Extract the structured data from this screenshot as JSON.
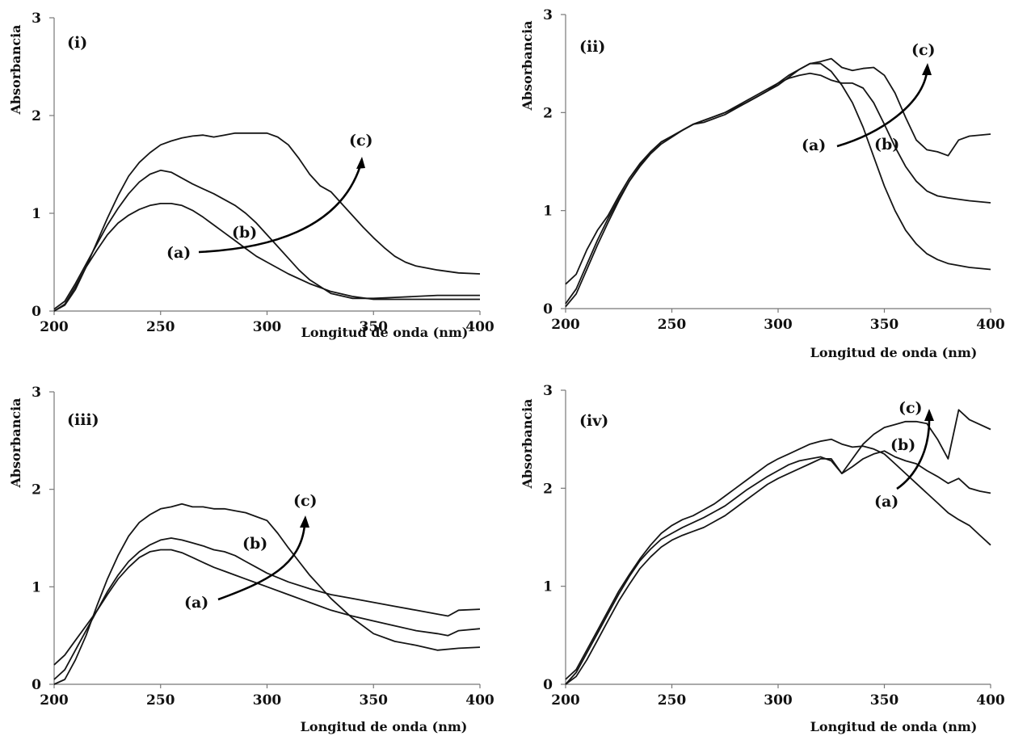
{
  "chart_data": [
    {
      "type": "line",
      "panel_label": "(i)",
      "xlabel": "Longitud de onda (nm)",
      "ylabel": "Absorbancia",
      "xlim": [
        200,
        400
      ],
      "ylim": [
        0,
        3
      ],
      "x_ticks": [
        "200",
        "250",
        "300",
        "350",
        "400"
      ],
      "y_ticks": [
        "0",
        "1",
        "2",
        "3"
      ],
      "grid": false,
      "annotations": {
        "a": "(a)",
        "b": "(b)",
        "c": "(c)"
      },
      "series": [
        {
          "x": [
            200,
            205,
            210,
            215,
            220,
            225,
            230,
            235,
            240,
            245,
            250,
            255,
            260,
            265,
            270,
            275,
            280,
            285,
            290,
            295,
            300,
            310,
            320,
            330,
            340,
            350,
            360,
            370,
            380,
            390,
            400
          ],
          "y": [
            0.0,
            0.07,
            0.25,
            0.45,
            0.62,
            0.78,
            0.9,
            0.98,
            1.04,
            1.08,
            1.1,
            1.1,
            1.08,
            1.03,
            0.96,
            0.88,
            0.8,
            0.72,
            0.64,
            0.56,
            0.5,
            0.38,
            0.28,
            0.2,
            0.15,
            0.12,
            0.12,
            0.12,
            0.12,
            0.12,
            0.12
          ]
        },
        {
          "x": [
            200,
            205,
            210,
            215,
            220,
            225,
            230,
            235,
            240,
            245,
            250,
            255,
            260,
            265,
            270,
            275,
            280,
            285,
            290,
            295,
            300,
            305,
            310,
            315,
            320,
            330,
            340,
            350,
            360,
            370,
            380,
            390,
            400
          ],
          "y": [
            0.02,
            0.1,
            0.28,
            0.48,
            0.68,
            0.88,
            1.05,
            1.2,
            1.32,
            1.4,
            1.44,
            1.42,
            1.36,
            1.3,
            1.25,
            1.2,
            1.14,
            1.08,
            1.0,
            0.9,
            0.78,
            0.66,
            0.54,
            0.42,
            0.32,
            0.18,
            0.13,
            0.13,
            0.14,
            0.15,
            0.16,
            0.16,
            0.16
          ]
        },
        {
          "x": [
            200,
            205,
            210,
            215,
            220,
            225,
            230,
            235,
            240,
            245,
            250,
            255,
            260,
            265,
            270,
            275,
            280,
            285,
            290,
            295,
            300,
            305,
            310,
            315,
            320,
            325,
            330,
            335,
            340,
            345,
            350,
            355,
            360,
            365,
            370,
            380,
            390,
            400
          ],
          "y": [
            0.0,
            0.06,
            0.22,
            0.45,
            0.7,
            0.95,
            1.18,
            1.38,
            1.52,
            1.62,
            1.7,
            1.74,
            1.77,
            1.79,
            1.8,
            1.78,
            1.8,
            1.82,
            1.82,
            1.82,
            1.82,
            1.78,
            1.7,
            1.56,
            1.4,
            1.28,
            1.22,
            1.1,
            0.98,
            0.86,
            0.75,
            0.65,
            0.56,
            0.5,
            0.46,
            0.42,
            0.39,
            0.38
          ]
        }
      ]
    },
    {
      "type": "line",
      "panel_label": "(ii)",
      "xlabel": "Longitud de onda (nm)",
      "ylabel": "Absorbancia",
      "xlim": [
        200,
        400
      ],
      "ylim": [
        0,
        3
      ],
      "x_ticks": [
        "200",
        "250",
        "300",
        "350",
        "400"
      ],
      "y_ticks": [
        "0",
        "1",
        "2",
        "3"
      ],
      "grid": false,
      "annotations": {
        "a": "(a)",
        "b": "(b)",
        "c": "(c)"
      },
      "series": [
        {
          "x": [
            200,
            205,
            210,
            215,
            220,
            225,
            230,
            235,
            240,
            245,
            250,
            255,
            260,
            265,
            270,
            275,
            280,
            285,
            290,
            295,
            300,
            305,
            310,
            315,
            320,
            325,
            330,
            335,
            340,
            345,
            350,
            355,
            360,
            365,
            370,
            375,
            380,
            390,
            400
          ],
          "y": [
            0.25,
            0.35,
            0.6,
            0.8,
            0.95,
            1.15,
            1.33,
            1.48,
            1.6,
            1.7,
            1.76,
            1.82,
            1.88,
            1.92,
            1.96,
            2.0,
            2.05,
            2.1,
            2.16,
            2.22,
            2.28,
            2.36,
            2.44,
            2.5,
            2.5,
            2.42,
            2.28,
            2.1,
            1.85,
            1.55,
            1.25,
            1.0,
            0.8,
            0.66,
            0.56,
            0.5,
            0.46,
            0.42,
            0.4
          ]
        },
        {
          "x": [
            200,
            205,
            210,
            215,
            220,
            225,
            230,
            235,
            240,
            245,
            250,
            255,
            260,
            265,
            270,
            275,
            280,
            285,
            290,
            295,
            300,
            305,
            310,
            315,
            320,
            325,
            330,
            335,
            340,
            345,
            350,
            355,
            360,
            365,
            370,
            375,
            380,
            390,
            400
          ],
          "y": [
            0.05,
            0.2,
            0.45,
            0.7,
            0.92,
            1.12,
            1.3,
            1.45,
            1.58,
            1.68,
            1.75,
            1.82,
            1.88,
            1.92,
            1.96,
            2.0,
            2.06,
            2.12,
            2.18,
            2.24,
            2.3,
            2.35,
            2.38,
            2.4,
            2.38,
            2.33,
            2.3,
            2.3,
            2.25,
            2.1,
            1.88,
            1.65,
            1.45,
            1.3,
            1.2,
            1.15,
            1.13,
            1.1,
            1.08
          ]
        },
        {
          "x": [
            200,
            205,
            210,
            215,
            220,
            225,
            230,
            235,
            240,
            245,
            250,
            255,
            260,
            265,
            270,
            275,
            280,
            285,
            290,
            295,
            300,
            305,
            310,
            315,
            320,
            325,
            330,
            335,
            340,
            345,
            350,
            355,
            360,
            365,
            370,
            375,
            380,
            385,
            390,
            400
          ],
          "y": [
            0.02,
            0.15,
            0.4,
            0.65,
            0.88,
            1.1,
            1.3,
            1.46,
            1.6,
            1.7,
            1.76,
            1.82,
            1.88,
            1.9,
            1.94,
            1.98,
            2.04,
            2.1,
            2.16,
            2.22,
            2.3,
            2.38,
            2.44,
            2.5,
            2.52,
            2.55,
            2.46,
            2.43,
            2.45,
            2.46,
            2.38,
            2.2,
            1.95,
            1.72,
            1.62,
            1.6,
            1.56,
            1.72,
            1.76,
            1.78
          ]
        }
      ]
    },
    {
      "type": "line",
      "panel_label": "(iii)",
      "xlabel": "Longitud de onda (nm)",
      "ylabel": "Absorbancia",
      "xlim": [
        200,
        400
      ],
      "ylim": [
        0,
        3
      ],
      "x_ticks": [
        "200",
        "250",
        "300",
        "350",
        "400"
      ],
      "y_ticks": [
        "0",
        "1",
        "2",
        "3"
      ],
      "grid": false,
      "annotations": {
        "a": "(a)",
        "b": "(b)",
        "c": "(c)"
      },
      "series": [
        {
          "x": [
            200,
            205,
            210,
            215,
            220,
            225,
            230,
            235,
            240,
            245,
            250,
            255,
            260,
            265,
            270,
            275,
            280,
            285,
            290,
            295,
            300,
            310,
            320,
            330,
            340,
            350,
            360,
            370,
            380,
            385,
            390,
            400
          ],
          "y": [
            0.2,
            0.3,
            0.45,
            0.6,
            0.75,
            0.92,
            1.08,
            1.2,
            1.3,
            1.36,
            1.38,
            1.38,
            1.35,
            1.3,
            1.25,
            1.2,
            1.16,
            1.12,
            1.08,
            1.04,
            1.0,
            0.92,
            0.84,
            0.76,
            0.7,
            0.65,
            0.6,
            0.55,
            0.52,
            0.5,
            0.55,
            0.57
          ]
        },
        {
          "x": [
            200,
            205,
            210,
            215,
            220,
            225,
            230,
            235,
            240,
            245,
            250,
            255,
            260,
            265,
            270,
            275,
            280,
            285,
            290,
            295,
            300,
            310,
            320,
            330,
            340,
            350,
            360,
            370,
            380,
            385,
            390,
            400
          ],
          "y": [
            0.05,
            0.15,
            0.35,
            0.55,
            0.75,
            0.95,
            1.12,
            1.26,
            1.36,
            1.43,
            1.48,
            1.5,
            1.48,
            1.45,
            1.42,
            1.38,
            1.36,
            1.32,
            1.26,
            1.2,
            1.14,
            1.05,
            0.98,
            0.92,
            0.88,
            0.84,
            0.8,
            0.76,
            0.72,
            0.7,
            0.76,
            0.77
          ]
        },
        {
          "x": [
            200,
            205,
            210,
            215,
            220,
            225,
            230,
            235,
            240,
            245,
            250,
            255,
            260,
            265,
            270,
            275,
            280,
            285,
            290,
            295,
            300,
            305,
            310,
            315,
            320,
            325,
            330,
            340,
            350,
            360,
            370,
            380,
            390,
            400
          ],
          "y": [
            0.0,
            0.05,
            0.25,
            0.5,
            0.8,
            1.08,
            1.32,
            1.52,
            1.66,
            1.74,
            1.8,
            1.82,
            1.85,
            1.82,
            1.82,
            1.8,
            1.8,
            1.78,
            1.76,
            1.72,
            1.68,
            1.55,
            1.4,
            1.26,
            1.12,
            1.0,
            0.88,
            0.68,
            0.52,
            0.44,
            0.4,
            0.35,
            0.37,
            0.38
          ]
        }
      ]
    },
    {
      "type": "line",
      "panel_label": "(iv)",
      "xlabel": "Longitud de onda (nm)",
      "ylabel": "Absorbancia",
      "xlim": [
        200,
        400
      ],
      "ylim": [
        0,
        3
      ],
      "x_ticks": [
        "200",
        "250",
        "300",
        "350",
        "400"
      ],
      "y_ticks": [
        "0",
        "1",
        "2",
        "3"
      ],
      "grid": false,
      "annotations": {
        "a": "(a)",
        "b": "(b)",
        "c": "(c)"
      },
      "series": [
        {
          "x": [
            200,
            205,
            210,
            215,
            220,
            225,
            230,
            235,
            240,
            245,
            250,
            255,
            260,
            265,
            270,
            275,
            280,
            285,
            290,
            295,
            300,
            305,
            310,
            315,
            320,
            325,
            330,
            335,
            340,
            345,
            350,
            355,
            360,
            365,
            370,
            375,
            380,
            385,
            390,
            395,
            400
          ],
          "y": [
            0.05,
            0.15,
            0.35,
            0.55,
            0.75,
            0.95,
            1.12,
            1.28,
            1.42,
            1.54,
            1.62,
            1.68,
            1.72,
            1.78,
            1.84,
            1.92,
            2.0,
            2.08,
            2.16,
            2.24,
            2.3,
            2.35,
            2.4,
            2.45,
            2.48,
            2.5,
            2.45,
            2.42,
            2.43,
            2.4,
            2.35,
            2.25,
            2.15,
            2.05,
            1.95,
            1.85,
            1.75,
            1.68,
            1.62,
            1.52,
            1.42
          ]
        },
        {
          "x": [
            200,
            205,
            210,
            215,
            220,
            225,
            230,
            235,
            240,
            245,
            250,
            255,
            260,
            265,
            270,
            275,
            280,
            285,
            290,
            295,
            300,
            305,
            310,
            315,
            320,
            325,
            330,
            335,
            340,
            345,
            350,
            355,
            360,
            365,
            370,
            375,
            380,
            385,
            390,
            395,
            400
          ],
          "y": [
            0.0,
            0.12,
            0.32,
            0.52,
            0.72,
            0.92,
            1.1,
            1.26,
            1.38,
            1.48,
            1.54,
            1.6,
            1.65,
            1.7,
            1.76,
            1.82,
            1.9,
            1.98,
            2.05,
            2.12,
            2.18,
            2.24,
            2.28,
            2.3,
            2.32,
            2.28,
            2.15,
            2.22,
            2.3,
            2.35,
            2.38,
            2.32,
            2.28,
            2.25,
            2.18,
            2.12,
            2.05,
            2.1,
            2.0,
            1.97,
            1.95
          ]
        },
        {
          "x": [
            200,
            205,
            210,
            215,
            220,
            225,
            230,
            235,
            240,
            245,
            250,
            255,
            260,
            265,
            270,
            275,
            280,
            285,
            290,
            295,
            300,
            305,
            310,
            315,
            320,
            325,
            330,
            335,
            340,
            345,
            350,
            355,
            360,
            365,
            370,
            375,
            380,
            383,
            385,
            390,
            400
          ],
          "y": [
            0.0,
            0.08,
            0.25,
            0.45,
            0.65,
            0.85,
            1.02,
            1.18,
            1.3,
            1.4,
            1.47,
            1.52,
            1.56,
            1.6,
            1.66,
            1.72,
            1.8,
            1.88,
            1.96,
            2.04,
            2.1,
            2.15,
            2.2,
            2.25,
            2.3,
            2.3,
            2.15,
            2.3,
            2.45,
            2.55,
            2.62,
            2.65,
            2.68,
            2.68,
            2.66,
            2.5,
            2.3,
            2.6,
            2.8,
            2.7,
            2.6
          ]
        }
      ]
    }
  ]
}
